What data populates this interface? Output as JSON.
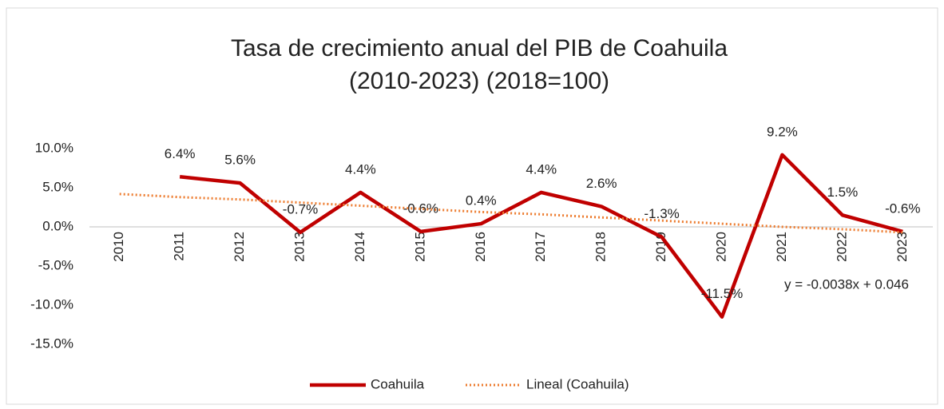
{
  "chart_data": {
    "type": "line",
    "title": [
      "Tasa de crecimiento anual del PIB de Coahuila",
      "(2010-2023) (2018=100)"
    ],
    "categories": [
      "2010",
      "2011",
      "2012",
      "2013",
      "2014",
      "2015",
      "2016",
      "2017",
      "2018",
      "2019",
      "2020",
      "2021",
      "2022",
      "2023"
    ],
    "series": [
      {
        "name": "Coahuila",
        "color": "#c00000",
        "style": "solid",
        "values": [
          null,
          6.4,
          5.6,
          -0.7,
          4.4,
          -0.6,
          0.4,
          4.4,
          2.6,
          -1.3,
          -11.5,
          9.2,
          1.5,
          -0.6
        ],
        "value_labels": [
          null,
          "6.4%",
          "5.6%",
          "-0.7%",
          "4.4%",
          "-0.6%",
          "0.4%",
          "4.4%",
          "2.6%",
          "-1.3%",
          "-11.5%",
          "9.2%",
          "1.5%",
          "-0.6%"
        ]
      },
      {
        "name": "Lineal (Coahuila)",
        "color": "#ed7d31",
        "style": "dotted",
        "values": [
          4.2,
          3.8,
          3.5,
          3.1,
          2.7,
          2.3,
          1.9,
          1.6,
          1.2,
          0.8,
          0.4,
          0.0,
          -0.3,
          -0.7
        ]
      }
    ],
    "annotation": "y = -0.0038x + 0.046",
    "ylim": [
      -15,
      10
    ],
    "yticks": [
      {
        "value": -15,
        "label": "-15.0%"
      },
      {
        "value": -10,
        "label": "-10.0%"
      },
      {
        "value": -5,
        "label": "-5.0%"
      },
      {
        "value": 0,
        "label": "0.0%"
      },
      {
        "value": 5,
        "label": "5.0%"
      },
      {
        "value": 10,
        "label": "10.0%"
      }
    ],
    "grid": false,
    "legend": "bottom"
  }
}
